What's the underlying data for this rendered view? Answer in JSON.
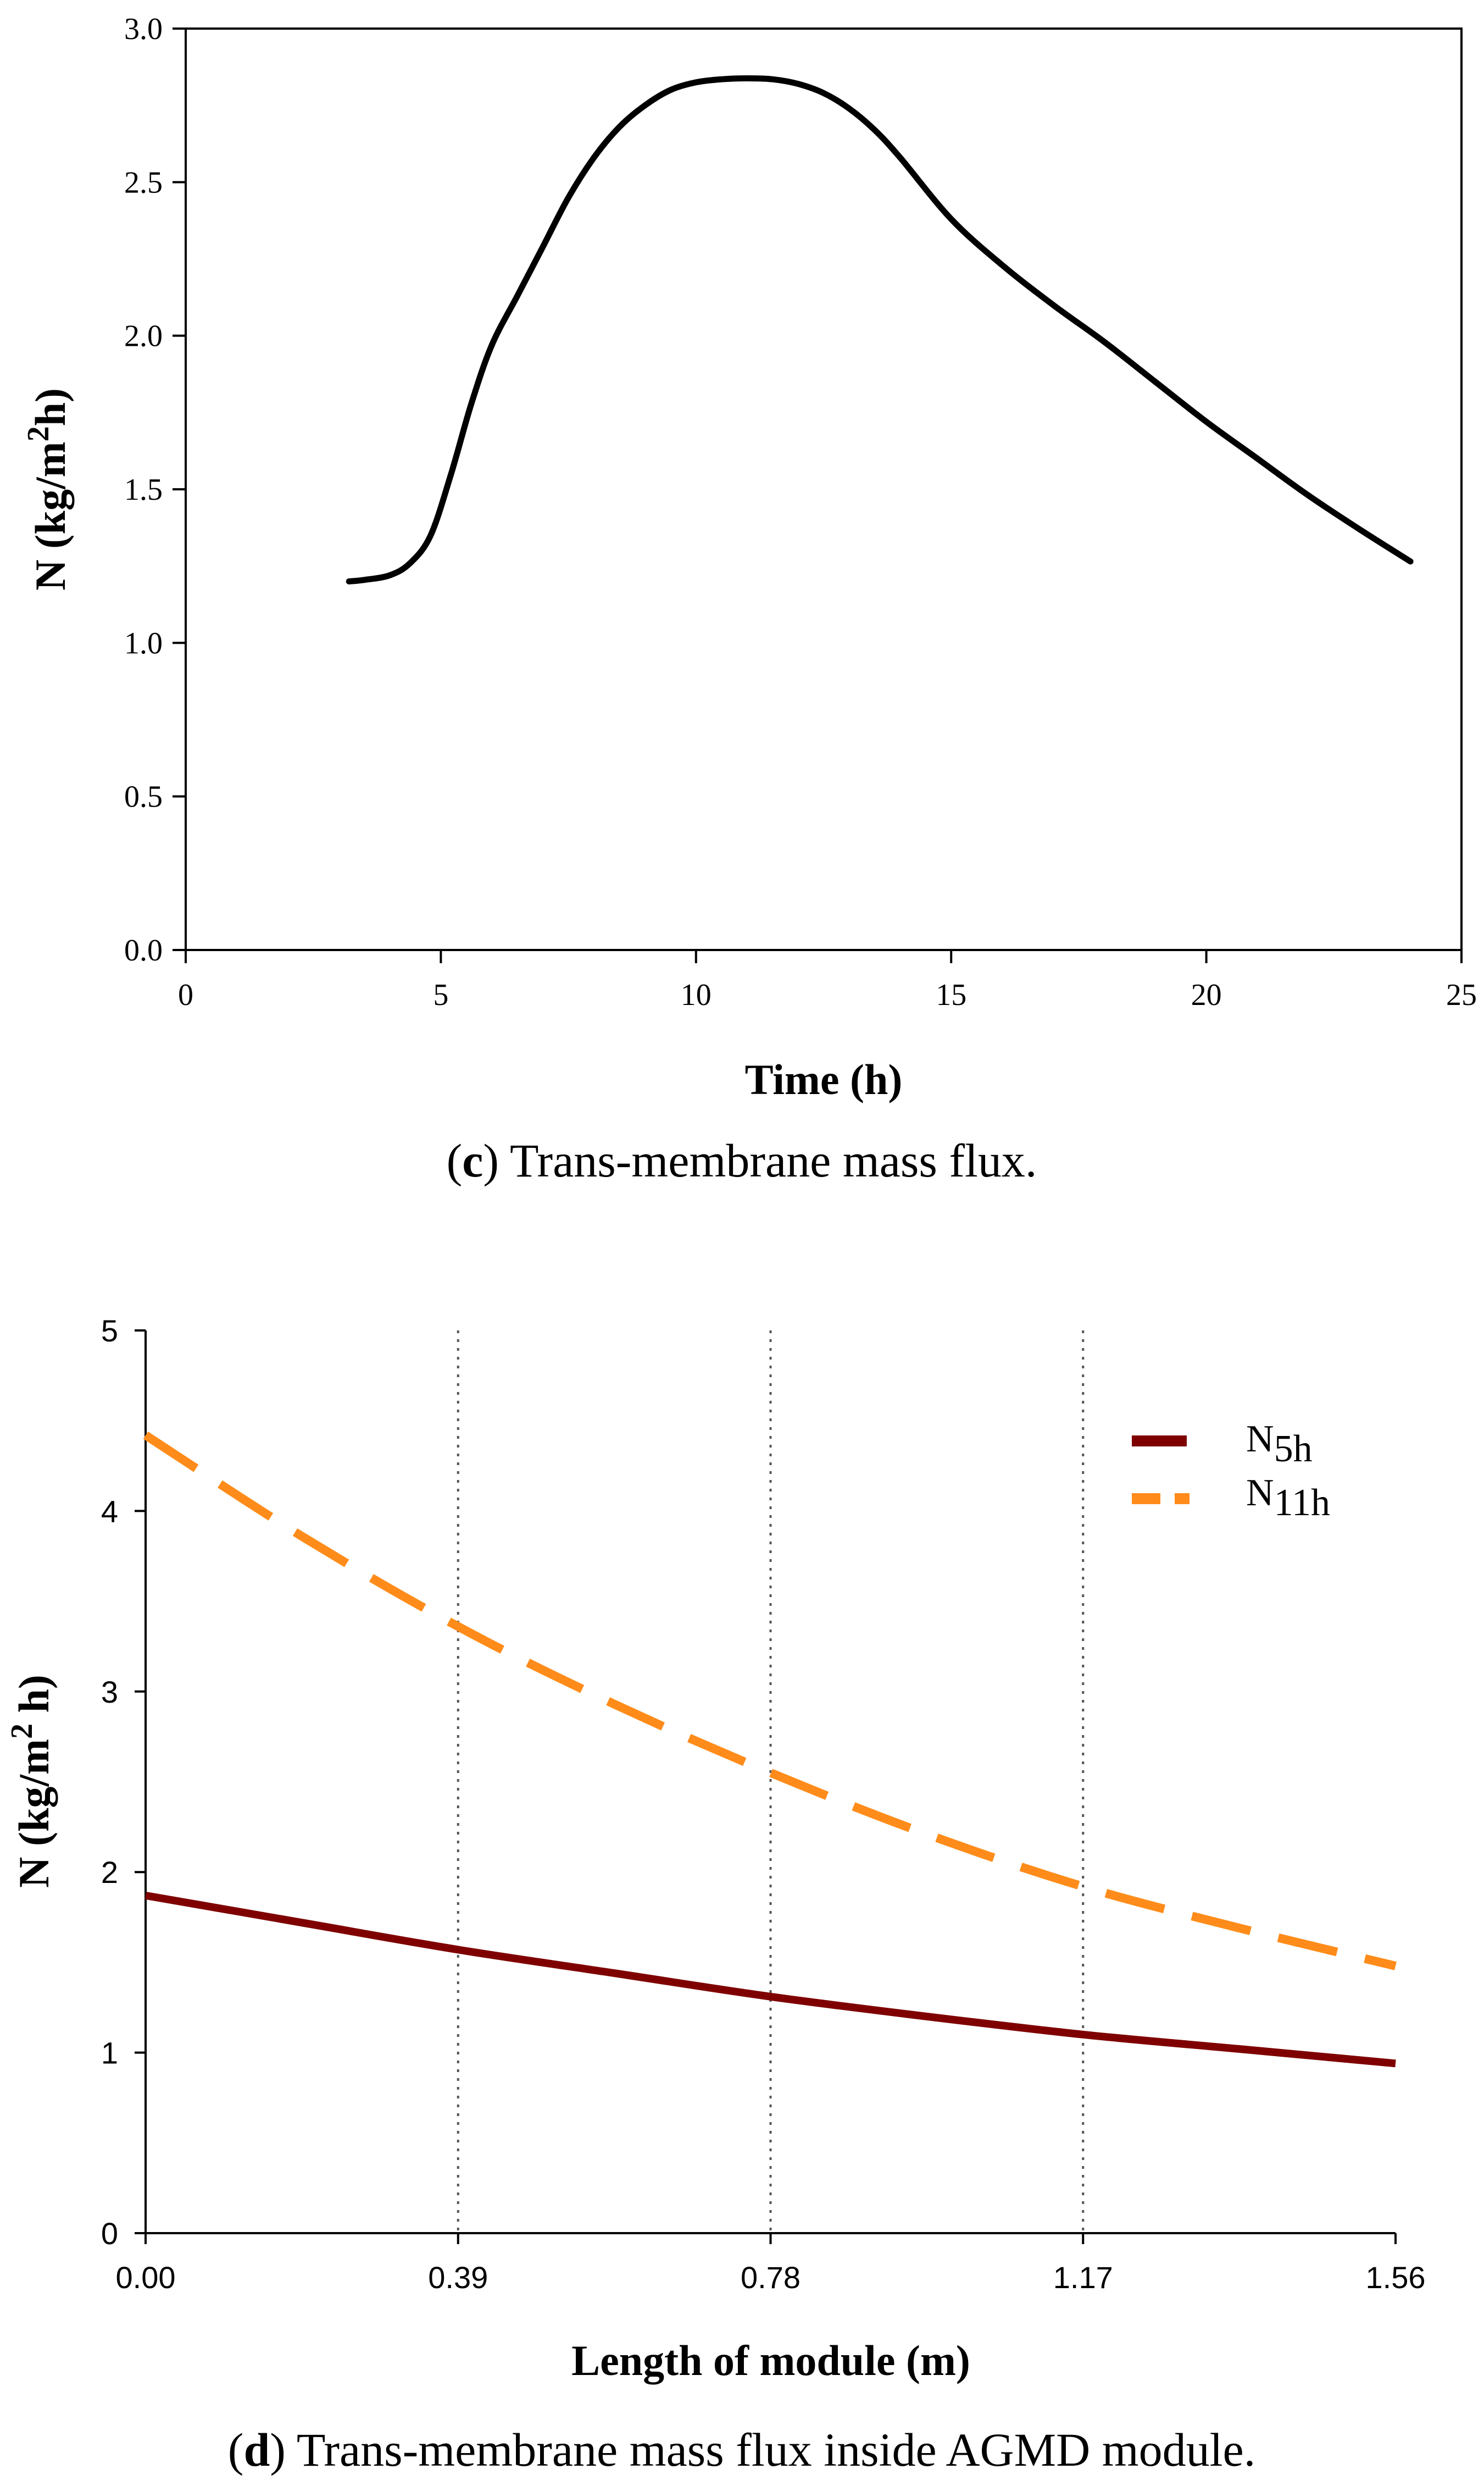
{
  "chart_data": [
    {
      "type": "line",
      "panel": "c",
      "caption_letter": "c",
      "caption_text": ") Trans-membrane mass flux.",
      "xlabel": "Time (h)",
      "ylabel": "N (kg/m",
      "ylabel_sup": "2",
      "ylabel_end": "h)",
      "xlim": [
        0,
        25
      ],
      "ylim": [
        0,
        3
      ],
      "xticks": [
        0,
        5,
        10,
        15,
        20,
        25
      ],
      "yticks": [
        0.0,
        0.5,
        1.0,
        1.5,
        2.0,
        2.5,
        3.0
      ],
      "ytick_labels": [
        "0.0",
        "0.5",
        "1.0",
        "1.5",
        "2.0",
        "2.5",
        "3.0"
      ],
      "grid": false,
      "series": [
        {
          "name": "N",
          "color": "#000000",
          "x": [
            3.2,
            3.5,
            4.0,
            4.4,
            4.8,
            5.2,
            5.6,
            6.0,
            6.5,
            7.0,
            7.5,
            8.0,
            8.5,
            9.0,
            9.5,
            10.0,
            10.5,
            11.0,
            11.5,
            12.0,
            12.5,
            13.0,
            13.5,
            14.0,
            15.0,
            16.0,
            17.0,
            18.0,
            19.0,
            20.0,
            21.0,
            22.0,
            23.0,
            24.0
          ],
          "y": [
            1.2,
            1.205,
            1.22,
            1.26,
            1.35,
            1.55,
            1.78,
            1.97,
            2.13,
            2.29,
            2.45,
            2.58,
            2.68,
            2.75,
            2.8,
            2.825,
            2.835,
            2.838,
            2.835,
            2.82,
            2.79,
            2.74,
            2.67,
            2.58,
            2.38,
            2.23,
            2.1,
            1.98,
            1.85,
            1.72,
            1.6,
            1.48,
            1.37,
            1.265
          ]
        }
      ]
    },
    {
      "type": "line",
      "panel": "d",
      "caption_letter": "d",
      "caption_text": ") Trans-membrane mass flux inside AGMD module.",
      "xlabel": "Length of module (m)",
      "ylabel": "N (kg/m",
      "ylabel_sup": "2",
      "ylabel_end": " h)",
      "xlim": [
        0,
        1.56
      ],
      "ylim": [
        0,
        5
      ],
      "xticks": [
        0.0,
        0.39,
        0.78,
        1.17,
        1.56
      ],
      "xtick_labels": [
        "0.00",
        "0.39",
        "0.78",
        "1.17",
        "1.56"
      ],
      "yticks": [
        0,
        1,
        2,
        3,
        4,
        5
      ],
      "ytick_labels": [
        "0",
        "1",
        "2",
        "3",
        "4",
        "5"
      ],
      "grid": "vertical-dotted",
      "legend_position": "top-right",
      "series": [
        {
          "name": "N",
          "name_sub": "5h",
          "style": "solid",
          "color": "#7f0000",
          "x": [
            0.0,
            0.195,
            0.39,
            0.585,
            0.78,
            0.975,
            1.17,
            1.365,
            1.56
          ],
          "y": [
            1.87,
            1.72,
            1.57,
            1.44,
            1.31,
            1.2,
            1.1,
            1.02,
            0.94
          ]
        },
        {
          "name": "N",
          "name_sub": "11h",
          "style": "dashed",
          "color": "#ff8c1a",
          "x": [
            0.0,
            0.195,
            0.39,
            0.585,
            0.78,
            0.975,
            1.17,
            1.365,
            1.56
          ],
          "y": [
            4.42,
            3.86,
            3.36,
            2.93,
            2.55,
            2.21,
            1.92,
            1.69,
            1.48
          ]
        }
      ]
    }
  ]
}
